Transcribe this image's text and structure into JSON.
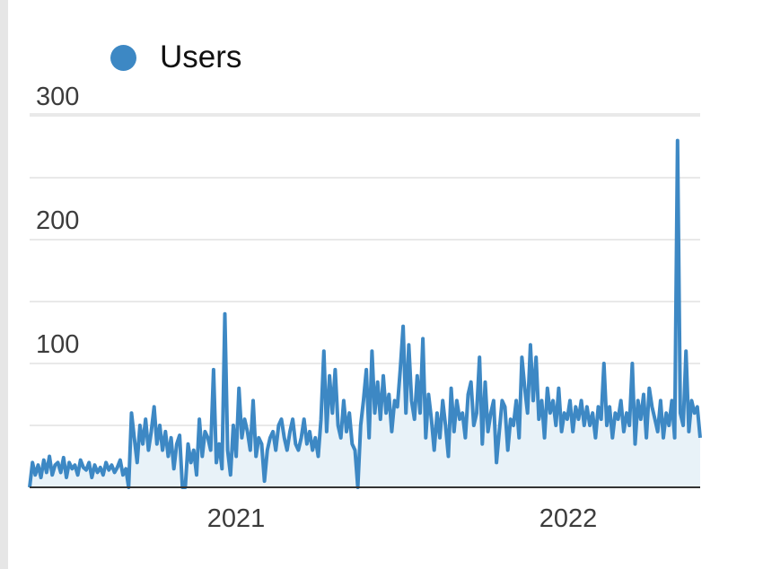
{
  "legend": {
    "label": "Users",
    "color": "#3d88c4"
  },
  "colors": {
    "line": "#3d88c4",
    "area": "#e8f2f8",
    "grid": "#e9e9e9",
    "axis": "#333333"
  },
  "chart_data": {
    "type": "area",
    "title": "",
    "xlabel": "",
    "ylabel": "",
    "x_ticks": [
      "2021",
      "2022"
    ],
    "y_ticks": [
      100,
      200,
      300
    ],
    "ylim": [
      0,
      300
    ],
    "grid": true,
    "legend_position": "top-left",
    "series": [
      {
        "name": "Users",
        "values": [
          0,
          20,
          10,
          18,
          8,
          22,
          12,
          25,
          10,
          18,
          20,
          12,
          24,
          8,
          20,
          15,
          18,
          10,
          22,
          16,
          14,
          20,
          8,
          18,
          12,
          16,
          10,
          20,
          14,
          18,
          12,
          16,
          22,
          10,
          15,
          0,
          60,
          40,
          20,
          50,
          35,
          55,
          30,
          45,
          65,
          35,
          50,
          30,
          45,
          25,
          40,
          15,
          35,
          42,
          0,
          0,
          35,
          20,
          30,
          10,
          55,
          25,
          45,
          40,
          30,
          95,
          20,
          35,
          15,
          140,
          30,
          10,
          50,
          25,
          80,
          40,
          55,
          45,
          30,
          70,
          25,
          40,
          35,
          5,
          30,
          40,
          45,
          30,
          50,
          55,
          40,
          30,
          45,
          55,
          35,
          30,
          40,
          55,
          35,
          45,
          30,
          40,
          25,
          55,
          110,
          45,
          90,
          60,
          95,
          50,
          40,
          70,
          45,
          60,
          35,
          30,
          0,
          50,
          70,
          95,
          40,
          110,
          60,
          85,
          55,
          90,
          60,
          75,
          45,
          70,
          65,
          95,
          130,
          60,
          115,
          70,
          55,
          90,
          60,
          120,
          40,
          75,
          55,
          30,
          60,
          40,
          70,
          50,
          25,
          80,
          45,
          70,
          55,
          60,
          40,
          75,
          85,
          50,
          60,
          105,
          35,
          85,
          45,
          60,
          70,
          20,
          45,
          70,
          65,
          30,
          55,
          50,
          70,
          40,
          105,
          80,
          60,
          115,
          70,
          105,
          55,
          70,
          40,
          80,
          60,
          70,
          50,
          80,
          45,
          60,
          55,
          70,
          45,
          65,
          55,
          70,
          50,
          65,
          50,
          60,
          40,
          65,
          55,
          100,
          50,
          65,
          40,
          60,
          55,
          70,
          45,
          60,
          50,
          100,
          35,
          70,
          55,
          75,
          40,
          80,
          65,
          55,
          45,
          70,
          40,
          60,
          50,
          70,
          40,
          280,
          60,
          50,
          110,
          45,
          70,
          60,
          65,
          40
        ]
      }
    ]
  }
}
